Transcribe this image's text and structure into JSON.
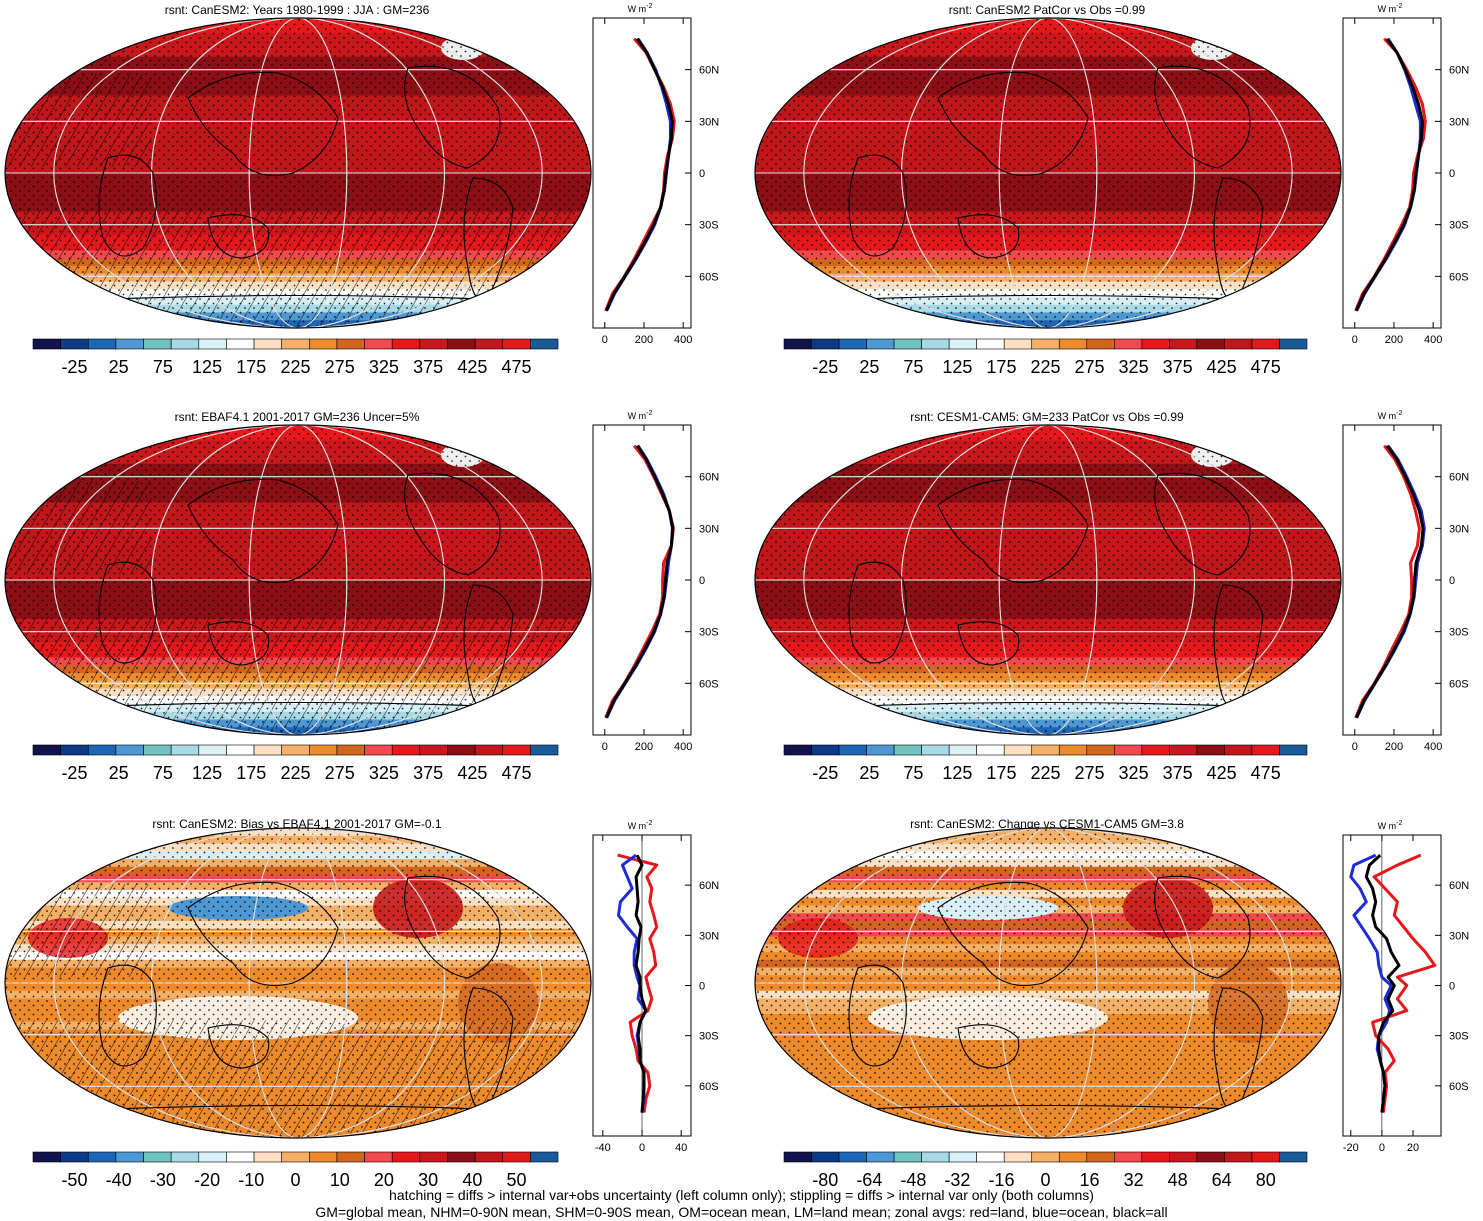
{
  "figure": {
    "footnote_line1": "hatching = diffs > internal var+obs uncertainty (left column only); stippling = diffs > internal var only (both columns)",
    "footnote_line2": "GM=global mean, NHM=0-90N mean, SHM=0-90S mean, OM=ocean mean, LM=land mean; zonal avgs: red=land, blue=ocean, black=all"
  },
  "colors": {
    "land": "#e8151b",
    "ocean": "#1d2bd8",
    "all": "#000000",
    "abs_palette": [
      "#12124f",
      "#0b3b86",
      "#1d66b6",
      "#4d97d2",
      "#72c2c0",
      "#a7d9e6",
      "#d8f0f6",
      "#ffffff",
      "#fde0c2",
      "#f5b068",
      "#ec8a2c",
      "#d2661f",
      "#f2494e",
      "#e6181c",
      "#c8181c",
      "#8c0f16",
      "#c0171b",
      "#e31a1c",
      "#1a5a9a"
    ],
    "diff_palette": [
      "#12124f",
      "#0b3b86",
      "#1d66b6",
      "#4d97d2",
      "#72c2c0",
      "#a7d9e6",
      "#d8f0f6",
      "#ffffff",
      "#fde0c2",
      "#f5b068",
      "#ec8a2c",
      "#d2661f",
      "#f2494e",
      "#e6181c",
      "#c8181c",
      "#8c0f16",
      "#c0171b",
      "#e31a1c",
      "#1a5a9a"
    ]
  },
  "chart_data": [
    {
      "type": "map",
      "title": "rsnt: CanESM2: Years 1980-1999 : JJA : GM=236",
      "field": "absolute",
      "hatched": true,
      "colorbar_labels": [
        "-25",
        "25",
        "75",
        "125",
        "175",
        "225",
        "275",
        "325",
        "375",
        "425",
        "475"
      ],
      "zonal": {
        "unit": "W m",
        "unit_sup": "-2",
        "x_ticks": [
          "0",
          "200",
          "400"
        ],
        "x_range": [
          -60,
          440
        ],
        "y_ticks": [
          "60N",
          "30N",
          "0",
          "30S",
          "60S"
        ],
        "lat": [
          78,
          70,
          60,
          50,
          40,
          30,
          20,
          10,
          0,
          -10,
          -20,
          -30,
          -40,
          -50,
          -60,
          -70,
          -80
        ],
        "land": [
          150,
          210,
          255,
          300,
          335,
          355,
          345,
          320,
          305,
          300,
          285,
          240,
          195,
          150,
          100,
          40,
          5
        ],
        "ocean": [
          170,
          215,
          260,
          290,
          315,
          335,
          335,
          325,
          315,
          305,
          285,
          255,
          210,
          160,
          105,
          50,
          10
        ],
        "all": [
          165,
          215,
          255,
          295,
          325,
          345,
          340,
          325,
          312,
          303,
          285,
          250,
          205,
          157,
          102,
          47,
          8
        ]
      }
    },
    {
      "type": "map",
      "title": "rsnt: CanESM2 PatCor vs Obs =0.99",
      "field": "absolute",
      "hatched": false,
      "colorbar_labels": [
        "-25",
        "25",
        "75",
        "125",
        "175",
        "225",
        "275",
        "325",
        "375",
        "425",
        "475"
      ],
      "zonal": {
        "unit": "W m",
        "unit_sup": "-2",
        "x_ticks": [
          "0",
          "200",
          "400"
        ],
        "x_range": [
          -60,
          440
        ],
        "y_ticks": [
          "60N",
          "30N",
          "0",
          "30S",
          "60S"
        ],
        "lat": [
          78,
          70,
          60,
          50,
          40,
          30,
          20,
          10,
          0,
          -10,
          -20,
          -30,
          -40,
          -50,
          -60,
          -70,
          -80
        ],
        "land": [
          150,
          215,
          265,
          310,
          345,
          360,
          350,
          320,
          300,
          295,
          280,
          240,
          195,
          150,
          100,
          40,
          5
        ],
        "ocean": [
          170,
          215,
          255,
          285,
          310,
          335,
          335,
          325,
          315,
          305,
          285,
          255,
          210,
          160,
          105,
          50,
          10
        ],
        "all": [
          165,
          215,
          258,
          295,
          325,
          345,
          340,
          325,
          312,
          303,
          284,
          250,
          205,
          157,
          102,
          47,
          8
        ]
      }
    },
    {
      "type": "map",
      "title": "rsnt: EBAF4.1 2001-2017 GM=236 Uncer=5%",
      "field": "absolute",
      "hatched": true,
      "colorbar_labels": [
        "-25",
        "25",
        "75",
        "125",
        "175",
        "225",
        "275",
        "325",
        "375",
        "425",
        "475"
      ],
      "zonal": {
        "unit": "W m",
        "unit_sup": "-2",
        "x_ticks": [
          "0",
          "200",
          "400"
        ],
        "x_range": [
          -60,
          440
        ],
        "y_ticks": [
          "60N",
          "30N",
          "0",
          "30S",
          "60S"
        ],
        "lat": [
          78,
          70,
          60,
          50,
          40,
          30,
          20,
          10,
          0,
          -10,
          -20,
          -30,
          -40,
          -50,
          -60,
          -70,
          -80
        ],
        "land": [
          150,
          205,
          250,
          290,
          330,
          350,
          340,
          300,
          295,
          295,
          280,
          240,
          195,
          150,
          100,
          40,
          5
        ],
        "ocean": [
          170,
          215,
          260,
          300,
          330,
          345,
          340,
          325,
          315,
          305,
          285,
          255,
          210,
          160,
          105,
          50,
          10
        ],
        "all": [
          165,
          212,
          255,
          295,
          330,
          347,
          340,
          318,
          310,
          302,
          284,
          250,
          205,
          157,
          102,
          47,
          8
        ]
      }
    },
    {
      "type": "map",
      "title": "rsnt: CESM1-CAM5: GM=233 PatCor vs Obs =0.99",
      "field": "absolute",
      "hatched": false,
      "colorbar_labels": [
        "-25",
        "25",
        "75",
        "125",
        "175",
        "225",
        "275",
        "325",
        "375",
        "425",
        "475"
      ],
      "zonal": {
        "unit": "W m",
        "unit_sup": "-2",
        "x_ticks": [
          "0",
          "200",
          "400"
        ],
        "x_range": [
          -60,
          440
        ],
        "y_ticks": [
          "60N",
          "30N",
          "0",
          "30S",
          "60S"
        ],
        "lat": [
          78,
          70,
          60,
          50,
          40,
          30,
          20,
          10,
          0,
          -10,
          -20,
          -30,
          -40,
          -50,
          -60,
          -70,
          -80
        ],
        "land": [
          150,
          205,
          250,
          285,
          310,
          330,
          320,
          285,
          290,
          290,
          275,
          235,
          190,
          148,
          100,
          40,
          5
        ],
        "ocean": [
          170,
          220,
          265,
          305,
          340,
          355,
          345,
          320,
          312,
          303,
          283,
          252,
          207,
          158,
          104,
          50,
          10
        ],
        "all": [
          165,
          215,
          258,
          298,
          330,
          348,
          340,
          313,
          305,
          300,
          281,
          247,
          203,
          155,
          102,
          47,
          8
        ]
      }
    },
    {
      "type": "map",
      "title": "rsnt: CanESM2: Bias vs EBAF4.1 2001-2017 GM=-0.1",
      "field": "difference",
      "hatched": true,
      "colorbar_labels": [
        "-50",
        "-40",
        "-30",
        "-20",
        "-10",
        "0",
        "10",
        "20",
        "30",
        "40",
        "50"
      ],
      "zonal": {
        "unit": "W m",
        "unit_sup": "-2",
        "x_ticks": [
          "-40",
          "0",
          "40"
        ],
        "x_range": [
          -50,
          50
        ],
        "y_ticks": [
          "60N",
          "30N",
          "0",
          "30S",
          "60S"
        ],
        "lat": [
          78,
          72,
          65,
          58,
          50,
          42,
          35,
          28,
          20,
          12,
          5,
          0,
          -8,
          -15,
          -22,
          -30,
          -38,
          -45,
          -52,
          -60,
          -68,
          -76
        ],
        "land": [
          -25,
          15,
          5,
          10,
          8,
          12,
          15,
          8,
          12,
          14,
          4,
          6,
          10,
          6,
          -12,
          -10,
          -6,
          -4,
          6,
          8,
          4,
          2
        ],
        "ocean": [
          -6,
          -20,
          -15,
          -10,
          -22,
          -24,
          -15,
          -5,
          -8,
          -8,
          -5,
          -2,
          -4,
          4,
          -2,
          -5,
          -3,
          -2,
          2,
          2,
          2,
          0
        ],
        "all": [
          -5,
          0,
          -6,
          -5,
          -4,
          -6,
          -1,
          -3,
          -4,
          -6,
          -2,
          -2,
          0,
          4,
          -2,
          -4,
          -2,
          -2,
          2,
          2,
          1,
          0
        ]
      }
    },
    {
      "type": "map",
      "title": "rsnt: CanESM2: Change vs CESM1-CAM5 GM=3.8",
      "field": "difference",
      "hatched": false,
      "colorbar_labels": [
        "-80",
        "-64",
        "-48",
        "-32",
        "-16",
        "0",
        "16",
        "32",
        "48",
        "64",
        "80"
      ],
      "zonal": {
        "unit": "W m",
        "unit_sup": "-2",
        "x_ticks": [
          "-20",
          "0",
          "20"
        ],
        "x_range": [
          -25,
          38
        ],
        "y_ticks": [
          "60N",
          "30N",
          "0",
          "30S",
          "60S"
        ],
        "lat": [
          78,
          72,
          65,
          58,
          50,
          42,
          35,
          28,
          20,
          12,
          5,
          0,
          -8,
          -15,
          -22,
          -30,
          -38,
          -45,
          -52,
          -60,
          -68,
          -76
        ],
        "land": [
          25,
          10,
          -5,
          2,
          10,
          8,
          14,
          20,
          28,
          34,
          10,
          16,
          10,
          16,
          -6,
          -4,
          4,
          8,
          2,
          3,
          2,
          1
        ],
        "ocean": [
          -4,
          -18,
          -20,
          -14,
          -10,
          -18,
          -13,
          -8,
          -3,
          -2,
          0,
          6,
          2,
          5,
          3,
          -2,
          -3,
          -1,
          1,
          2,
          1,
          0
        ],
        "all": [
          -1,
          -8,
          -10,
          -6,
          -4,
          -6,
          -4,
          3,
          6,
          11,
          4,
          8,
          4,
          7,
          1,
          -2,
          -2,
          -1,
          1,
          2,
          1,
          0
        ]
      }
    }
  ]
}
